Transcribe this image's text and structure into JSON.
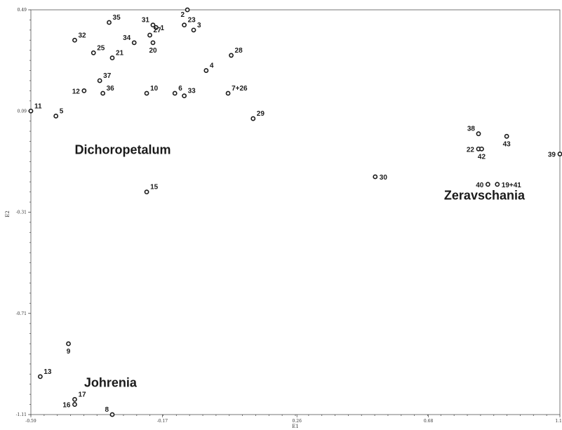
{
  "chart_data": {
    "type": "scatter",
    "xlabel": "E1",
    "ylabel": "E2",
    "xlim": [
      -0.59,
      1.1
    ],
    "ylim": [
      -1.11,
      0.49
    ],
    "x_ticks": [
      -0.59,
      -0.17,
      0.26,
      0.68,
      1.1
    ],
    "y_ticks": [
      0.49,
      0.09,
      -0.31,
      -0.71,
      -1.11
    ],
    "x_tick_labels": [
      "-0.59",
      "-0.17",
      "0.26",
      "0.68",
      "1.10"
    ],
    "y_tick_labels": [
      "0.49",
      "0.09",
      "-0.31",
      "-0.71",
      "-1.11"
    ],
    "grid": false,
    "points": [
      {
        "label": "2",
        "x": -0.09,
        "y": 0.49,
        "lpos": "bl"
      },
      {
        "label": "35",
        "x": -0.34,
        "y": 0.44,
        "lpos": "tr"
      },
      {
        "label": "31",
        "x": -0.2,
        "y": 0.43,
        "lpos": "tl"
      },
      {
        "label": "1",
        "x": -0.19,
        "y": 0.42,
        "lpos": "r"
      },
      {
        "label": "23",
        "x": -0.1,
        "y": 0.43,
        "lpos": "tr"
      },
      {
        "label": "3",
        "x": -0.07,
        "y": 0.41,
        "lpos": "tr"
      },
      {
        "label": "32",
        "x": -0.45,
        "y": 0.37,
        "lpos": "tr"
      },
      {
        "label": "27",
        "x": -0.21,
        "y": 0.39,
        "lpos": "tr"
      },
      {
        "label": "34",
        "x": -0.26,
        "y": 0.36,
        "lpos": "tl"
      },
      {
        "label": "20",
        "x": -0.2,
        "y": 0.36,
        "lpos": "b"
      },
      {
        "label": "25",
        "x": -0.39,
        "y": 0.32,
        "lpos": "tr"
      },
      {
        "label": "21",
        "x": -0.33,
        "y": 0.3,
        "lpos": "tr"
      },
      {
        "label": "28",
        "x": 0.05,
        "y": 0.31,
        "lpos": "tr"
      },
      {
        "label": "4",
        "x": -0.03,
        "y": 0.25,
        "lpos": "tr"
      },
      {
        "label": "37",
        "x": -0.37,
        "y": 0.21,
        "lpos": "tr"
      },
      {
        "label": "12",
        "x": -0.42,
        "y": 0.17,
        "lpos": "l"
      },
      {
        "label": "36",
        "x": -0.36,
        "y": 0.16,
        "lpos": "tr"
      },
      {
        "label": "10",
        "x": -0.22,
        "y": 0.16,
        "lpos": "tr"
      },
      {
        "label": "6",
        "x": -0.13,
        "y": 0.16,
        "lpos": "tr"
      },
      {
        "label": "33",
        "x": -0.1,
        "y": 0.15,
        "lpos": "tr"
      },
      {
        "label": "7+26",
        "x": 0.04,
        "y": 0.16,
        "lpos": "tr"
      },
      {
        "label": "11",
        "x": -0.59,
        "y": 0.09,
        "lpos": "tr"
      },
      {
        "label": "5",
        "x": -0.51,
        "y": 0.07,
        "lpos": "tr"
      },
      {
        "label": "29",
        "x": 0.12,
        "y": 0.06,
        "lpos": "tr"
      },
      {
        "label": "38",
        "x": 0.84,
        "y": 0.0,
        "lpos": "tl"
      },
      {
        "label": "43",
        "x": 0.93,
        "y": -0.01,
        "lpos": "b"
      },
      {
        "label": "22",
        "x": 0.84,
        "y": -0.06,
        "lpos": "l"
      },
      {
        "label": "42",
        "x": 0.85,
        "y": -0.06,
        "lpos": "b"
      },
      {
        "label": "39",
        "x": 1.1,
        "y": -0.08,
        "lpos": "l"
      },
      {
        "label": "30",
        "x": 0.51,
        "y": -0.17,
        "lpos": "r"
      },
      {
        "label": "40",
        "x": 0.87,
        "y": -0.2,
        "lpos": "l"
      },
      {
        "label": "19+41",
        "x": 0.9,
        "y": -0.2,
        "lpos": "r"
      },
      {
        "label": "15",
        "x": -0.22,
        "y": -0.23,
        "lpos": "tr"
      },
      {
        "label": "9",
        "x": -0.47,
        "y": -0.83,
        "lpos": "b"
      },
      {
        "label": "13",
        "x": -0.56,
        "y": -0.96,
        "lpos": "tr"
      },
      {
        "label": "17",
        "x": -0.45,
        "y": -1.05,
        "lpos": "tr"
      },
      {
        "label": "16",
        "x": -0.45,
        "y": -1.07,
        "lpos": "l"
      },
      {
        "label": "8",
        "x": -0.33,
        "y": -1.11,
        "lpos": "tl"
      }
    ],
    "group_labels": [
      {
        "text": "Dichoropetalum",
        "x": -0.45,
        "y": -0.08
      },
      {
        "text": "Zeravschania",
        "x": 0.73,
        "y": -0.26
      },
      {
        "text": "Johrenia",
        "x": -0.42,
        "y": -1.0
      }
    ]
  }
}
